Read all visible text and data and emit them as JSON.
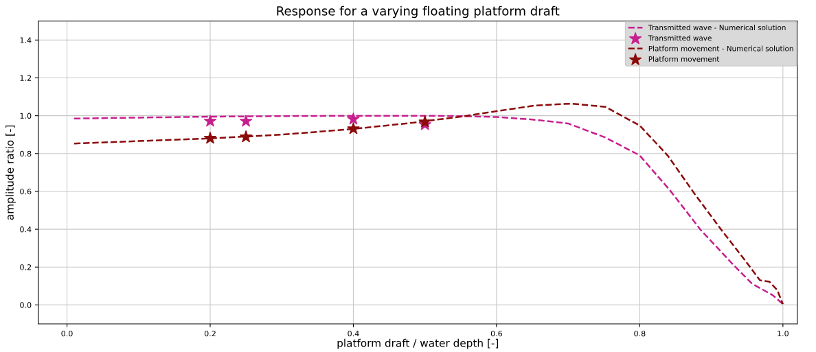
{
  "chart_data": {
    "type": "line",
    "title": "Response for a varying floating platform draft",
    "xlabel": "platform draft / water depth [-]",
    "ylabel": "amplitude ratio [-]",
    "xlim": [
      -0.04,
      1.02
    ],
    "ylim": [
      -0.1,
      1.5
    ],
    "xticks": [
      {
        "value": 0,
        "label": "0.0"
      },
      0.2,
      0.4,
      0.6,
      0.8,
      {
        "value": 1,
        "label": "1.0"
      }
    ],
    "yticks": [
      {
        "value": 0,
        "label": "0.0"
      },
      0.2,
      0.4,
      0.6,
      0.8,
      {
        "value": 1,
        "label": "1.0"
      },
      1.2,
      1.4
    ],
    "grid": true,
    "legend": "top right",
    "series": [
      {
        "name": "Transmitted wave - Numerical solution",
        "line_style": "dashed",
        "marker": "none",
        "color": "#c71f8e",
        "x": [
          0.01,
          0.1,
          0.2,
          0.3,
          0.4,
          0.5,
          0.55,
          0.6,
          0.65,
          0.7,
          0.752,
          0.8,
          0.842,
          0.885,
          0.932,
          0.957,
          0.986,
          1.0
        ],
        "values": [
          0.985,
          0.99,
          0.995,
          0.998,
          1.0,
          1.0,
          0.998,
          0.993,
          0.98,
          0.959,
          0.885,
          0.79,
          0.607,
          0.397,
          0.207,
          0.112,
          0.051,
          0.004
        ]
      },
      {
        "name": "Transmitted wave",
        "type": "scatter",
        "marker": "star",
        "color": "#c71f8e",
        "x": [
          0.2,
          0.25,
          0.4,
          0.5
        ],
        "values": [
          0.971,
          0.971,
          0.982,
          0.953
        ]
      },
      {
        "name": "Platform movement - Numerical solution",
        "line_style": "dashed",
        "marker": "none",
        "color": "#8b0a0a",
        "x": [
          0.01,
          0.1,
          0.2,
          0.25,
          0.3,
          0.4,
          0.481,
          0.55,
          0.6,
          0.654,
          0.705,
          0.752,
          0.8,
          0.839,
          0.878,
          0.914,
          0.946,
          0.968,
          0.981,
          0.992,
          1.0
        ],
        "values": [
          0.853,
          0.866,
          0.88,
          0.89,
          0.9,
          0.93,
          0.962,
          0.995,
          1.024,
          1.054,
          1.064,
          1.047,
          0.948,
          0.79,
          0.58,
          0.397,
          0.241,
          0.13,
          0.123,
          0.079,
          0.004
        ]
      },
      {
        "name": "Platform movement",
        "type": "scatter",
        "marker": "star",
        "color": "#8b0a0a",
        "x": [
          0.2,
          0.25,
          0.4,
          0.5
        ],
        "values": [
          0.881,
          0.888,
          0.931,
          0.967
        ]
      }
    ]
  }
}
